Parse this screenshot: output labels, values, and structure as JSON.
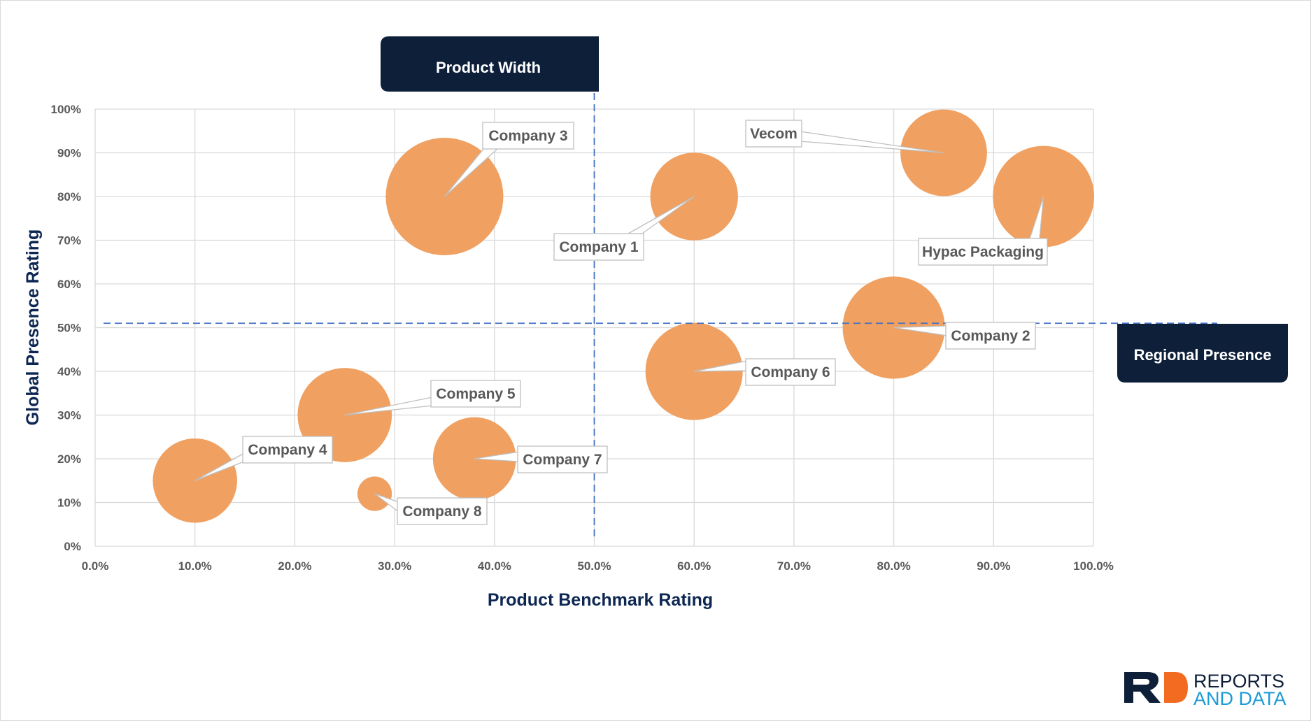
{
  "colors": {
    "bubble": "#f0a060",
    "banner_bg": "#0e2039",
    "banner_text": "#ffffff",
    "axis_title": "#0d2752",
    "tick_text": "#595959",
    "grid": "#d9d9d9",
    "divider": "#4472c4",
    "callout_border": "#bfbfbf",
    "logo_dark": "#0e2039",
    "logo_accent": "#f26b21",
    "logo_accent_text": "#1d9ad6"
  },
  "banners": {
    "top": "Product Width",
    "right": "Regional Presence"
  },
  "logo": {
    "line1": "REPORTS",
    "line2": "AND DATA"
  },
  "chart_data": {
    "type": "scatter",
    "subtype": "bubble",
    "xlabel": "Product Benchmark Rating",
    "ylabel": "Global Presence Rating",
    "xlim": [
      0,
      100
    ],
    "ylim": [
      0,
      100
    ],
    "x_ticks": [
      0,
      10,
      20,
      30,
      40,
      50,
      60,
      70,
      80,
      90,
      100
    ],
    "x_tick_labels": [
      "0.0%",
      "10.0%",
      "20.0%",
      "30.0%",
      "40.0%",
      "50.0%",
      "60.0%",
      "70.0%",
      "80.0%",
      "90.0%",
      "100.0%"
    ],
    "y_ticks": [
      0,
      10,
      20,
      30,
      40,
      50,
      60,
      70,
      80,
      90,
      100
    ],
    "y_tick_labels": [
      "0%",
      "10%",
      "20%",
      "30%",
      "40%",
      "50%",
      "60%",
      "70%",
      "80%",
      "90%",
      "100%"
    ],
    "grid": true,
    "dividers": {
      "x": 50,
      "y": 51
    },
    "points": [
      {
        "label": "Company 3",
        "x": 35,
        "y": 80,
        "size": 7.0
      },
      {
        "label": "Company 1",
        "x": 60,
        "y": 80,
        "size": 3.9
      },
      {
        "label": "Vecom",
        "x": 85,
        "y": 90,
        "size": 3.8
      },
      {
        "label": "Hypac Packaging",
        "x": 95,
        "y": 80,
        "size": 5.2
      },
      {
        "label": "Company 2",
        "x": 80,
        "y": 50,
        "size": 5.3
      },
      {
        "label": "Company 6",
        "x": 60,
        "y": 40,
        "size": 4.8
      },
      {
        "label": "Company 5",
        "x": 25,
        "y": 30,
        "size": 4.5
      },
      {
        "label": "Company 7",
        "x": 38,
        "y": 20,
        "size": 3.5
      },
      {
        "label": "Company 4",
        "x": 10,
        "y": 15,
        "size": 3.6
      },
      {
        "label": "Company 8",
        "x": 28,
        "y": 12,
        "size": 0.6
      }
    ]
  }
}
